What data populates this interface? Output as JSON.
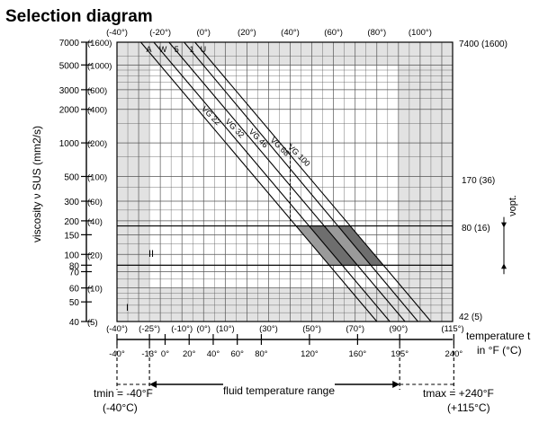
{
  "title": "Selection diagram",
  "chart_data": {
    "type": "line",
    "title": "Selection diagram",
    "ylabel": "viscosity ν SUS (mm2/s)",
    "xlabel": "temperature t in °F (°C)",
    "y_scale": "log",
    "x_range_C": [
      -40,
      115
    ],
    "y_range_mm2s": [
      5,
      1600
    ],
    "y_ticks": [
      {
        "sus": "7000",
        "mm": "(1600)",
        "v": 1600
      },
      {
        "sus": "5000",
        "mm": "(1000)",
        "v": 1000
      },
      {
        "sus": "3000",
        "mm": "(600)",
        "v": 600
      },
      {
        "sus": "2000",
        "mm": "(400)",
        "v": 400
      },
      {
        "sus": "1000",
        "mm": "(200)",
        "v": 200
      },
      {
        "sus": "500",
        "mm": "(100)",
        "v": 100
      },
      {
        "sus": "300",
        "mm": "(60)",
        "v": 60
      },
      {
        "sus": "200",
        "mm": "(40)",
        "v": 40
      },
      {
        "sus": "150",
        "mm": "",
        "v": 30
      },
      {
        "sus": "100",
        "mm": "(20)",
        "v": 20
      },
      {
        "sus": "80",
        "mm": "",
        "v": 16
      },
      {
        "sus": "70",
        "mm": "",
        "v": 14
      },
      {
        "sus": "60",
        "mm": "(10)",
        "v": 10
      },
      {
        "sus": "50",
        "mm": "",
        "v": 7.5
      },
      {
        "sus": "40",
        "mm": "(5)",
        "v": 5
      }
    ],
    "top_ticks": [
      {
        "label": "(-40°)",
        "c": -40
      },
      {
        "label": "(-20°)",
        "c": -20
      },
      {
        "label": "(0°)",
        "c": 0
      },
      {
        "label": "(20°)",
        "c": 20
      },
      {
        "label": "(40°)",
        "c": 40
      },
      {
        "label": "(60°)",
        "c": 60
      },
      {
        "label": "(80°)",
        "c": 80
      },
      {
        "label": "(100°)",
        "c": 100
      }
    ],
    "bottom_c_ticks": [
      {
        "label": "(-40°)",
        "c": -40
      },
      {
        "label": "(-25°)",
        "c": -25
      },
      {
        "label": "(-10°)",
        "c": -10
      },
      {
        "label": "(0°)",
        "c": 0
      },
      {
        "label": "(10°)",
        "c": 10
      },
      {
        "label": "(30°)",
        "c": 30
      },
      {
        "label": "(50°)",
        "c": 50
      },
      {
        "label": "(70°)",
        "c": 70
      },
      {
        "label": "(90°)",
        "c": 90
      },
      {
        "label": "(115°)",
        "c": 115
      }
    ],
    "bottom_f_ticks": [
      {
        "label": "-40°",
        "f": -40
      },
      {
        "label": "-13°",
        "f": -13
      },
      {
        "label": "0°",
        "f": 0
      },
      {
        "label": "20°",
        "f": 20
      },
      {
        "label": "40°",
        "f": 40
      },
      {
        "label": "60°",
        "f": 60
      },
      {
        "label": "80°",
        "f": 80
      },
      {
        "label": "120°",
        "f": 120
      },
      {
        "label": "160°",
        "f": 160
      },
      {
        "label": "195°",
        "f": 195
      },
      {
        "label": "240°",
        "f": 240
      }
    ],
    "series": [
      {
        "name": "VG 22",
        "points": [
          [
            -29,
            1600
          ],
          [
            80,
            5
          ]
        ]
      },
      {
        "name": "VG 32",
        "points": [
          [
            -23,
            1600
          ],
          [
            86,
            5
          ]
        ]
      },
      {
        "name": "VG 46",
        "points": [
          [
            -16,
            1600
          ],
          [
            93,
            5
          ]
        ]
      },
      {
        "name": "VG 68",
        "points": [
          [
            -9,
            1600
          ],
          [
            99,
            5
          ]
        ]
      },
      {
        "name": "VG 100",
        "points": [
          [
            -4,
            1600
          ],
          [
            105,
            5
          ]
        ]
      }
    ],
    "top_letters": [
      "A",
      "W",
      "5",
      "1",
      "U"
    ],
    "right_labels": {
      "top": "7400 (1600)",
      "opt_high": "170 (36)",
      "opt_low": "80 (16)",
      "bottom": "42 (5)",
      "vopt": "νopt."
    },
    "optimum_band_mm2s": [
      16,
      36
    ],
    "optimum_band_C": [
      30,
      90
    ],
    "region_labels": [
      "I",
      "II"
    ],
    "range": {
      "tmin": "tmin = -40°F",
      "tmin_c": "(-40°C)",
      "tmax": "tmax = +240°F",
      "tmax_c": "(+115°C)",
      "fluid": "fluid temperature range"
    },
    "axis_title": {
      "line1": "temperature t",
      "line2": "in °F (°C)"
    },
    "grid": true,
    "colors": {
      "light_gray": "#e2e2e2",
      "band": "#6e6e6e",
      "band_light": "#9a9a9a"
    }
  }
}
